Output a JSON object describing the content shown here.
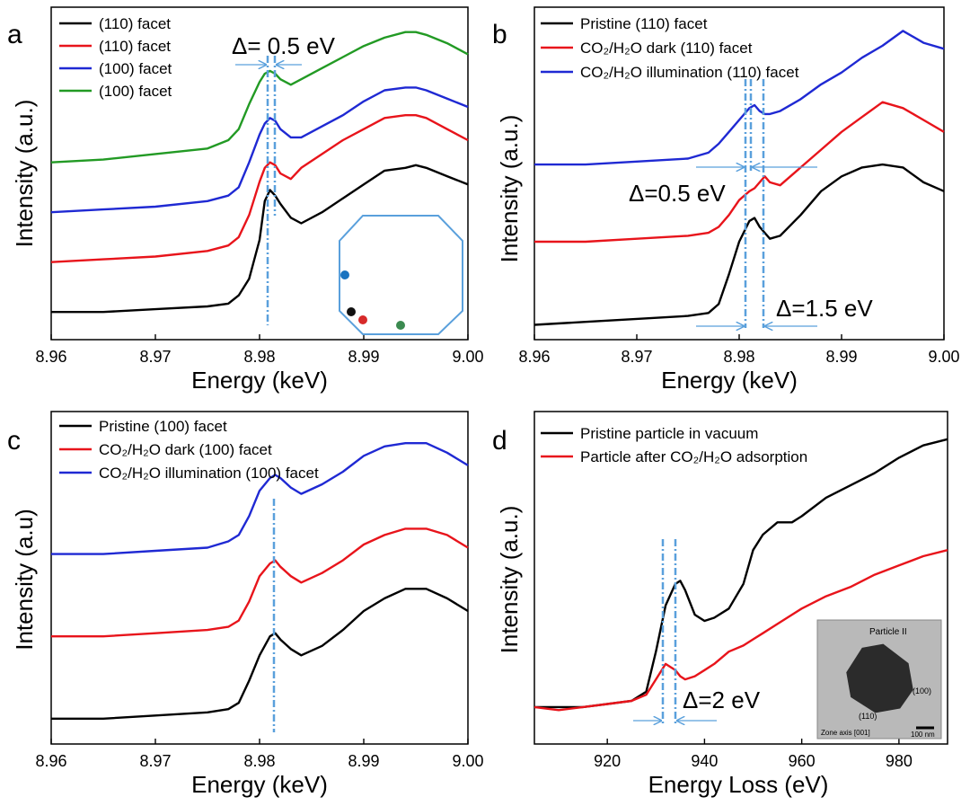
{
  "chart_data": [
    {
      "panel": "a",
      "type": "line",
      "xlabel": "Energy (keV)",
      "ylabel": "Intensity (a.u.)",
      "xlim": [
        8.96,
        9.0
      ],
      "x_ticks": [
        "8.96",
        "8.97",
        "8.98",
        "8.99",
        "9.00"
      ],
      "x": [
        8.96,
        8.965,
        8.97,
        8.975,
        8.977,
        8.978,
        8.979,
        8.98,
        8.9805,
        8.981,
        8.9815,
        8.982,
        8.983,
        8.984,
        8.986,
        8.988,
        8.99,
        8.992,
        8.994,
        8.995,
        8.996,
        8.998,
        9.0
      ],
      "series": [
        {
          "name": "(110) facet",
          "color": "#000000",
          "y": [
            0.1,
            0.1,
            0.11,
            0.12,
            0.13,
            0.16,
            0.22,
            0.36,
            0.5,
            0.54,
            0.52,
            0.49,
            0.44,
            0.42,
            0.46,
            0.51,
            0.56,
            0.61,
            0.62,
            0.63,
            0.62,
            0.59,
            0.56
          ]
        },
        {
          "name": "(110) facet",
          "color": "#e8141b",
          "y": [
            0.28,
            0.29,
            0.3,
            0.32,
            0.34,
            0.37,
            0.45,
            0.57,
            0.62,
            0.64,
            0.63,
            0.6,
            0.58,
            0.62,
            0.67,
            0.72,
            0.76,
            0.8,
            0.81,
            0.81,
            0.8,
            0.76,
            0.72
          ]
        },
        {
          "name": "(100) facet",
          "color": "#1f29d3",
          "y": [
            0.46,
            0.47,
            0.48,
            0.5,
            0.52,
            0.55,
            0.64,
            0.74,
            0.78,
            0.8,
            0.79,
            0.76,
            0.73,
            0.73,
            0.77,
            0.81,
            0.86,
            0.9,
            0.91,
            0.91,
            0.9,
            0.87,
            0.84
          ]
        },
        {
          "name": "(100) facet",
          "color": "#229a24",
          "y": [
            0.64,
            0.65,
            0.67,
            0.69,
            0.72,
            0.76,
            0.85,
            0.93,
            0.96,
            0.97,
            0.96,
            0.94,
            0.92,
            0.94,
            0.98,
            1.02,
            1.06,
            1.09,
            1.11,
            1.11,
            1.1,
            1.07,
            1.03
          ]
        }
      ],
      "annotations": [
        "Δ= 0.5 eV"
      ],
      "grid": false,
      "legend": "top-left"
    },
    {
      "panel": "b",
      "type": "line",
      "xlabel": "Energy (keV)",
      "ylabel": "Intensity (a.u.)",
      "xlim": [
        8.96,
        9.0
      ],
      "x_ticks": [
        "8.96",
        "8.97",
        "8.98",
        "8.99",
        "9.00"
      ],
      "x": [
        8.96,
        8.965,
        8.97,
        8.975,
        8.977,
        8.978,
        8.979,
        8.98,
        8.981,
        8.9815,
        8.982,
        8.9825,
        8.983,
        8.984,
        8.986,
        8.988,
        8.99,
        8.992,
        8.994,
        8.996,
        8.998,
        9.0
      ],
      "series": [
        {
          "name": "Pristine (110) facet",
          "color": "#000000",
          "y": [
            0.05,
            0.06,
            0.07,
            0.08,
            0.09,
            0.12,
            0.22,
            0.33,
            0.4,
            0.41,
            0.38,
            0.36,
            0.34,
            0.35,
            0.42,
            0.5,
            0.55,
            0.58,
            0.59,
            0.58,
            0.53,
            0.5
          ]
        },
        {
          "name": "CO₂/H₂O dark (110) facet",
          "color": "#e8141b",
          "y": [
            0.33,
            0.33,
            0.34,
            0.35,
            0.36,
            0.38,
            0.42,
            0.47,
            0.5,
            0.51,
            0.53,
            0.55,
            0.53,
            0.52,
            0.58,
            0.64,
            0.7,
            0.75,
            0.8,
            0.78,
            0.74,
            0.7
          ]
        },
        {
          "name": "CO₂/H₂O illumination (110) facet",
          "color": "#1f29d3",
          "y": [
            0.59,
            0.59,
            0.6,
            0.61,
            0.63,
            0.66,
            0.7,
            0.74,
            0.78,
            0.79,
            0.77,
            0.76,
            0.76,
            0.77,
            0.81,
            0.86,
            0.9,
            0.95,
            0.99,
            1.04,
            1.0,
            0.98
          ]
        }
      ],
      "annotations": [
        "Δ=0.5 eV",
        "Δ=1.5 eV"
      ],
      "grid": false,
      "legend": "top-left"
    },
    {
      "panel": "c",
      "type": "line",
      "xlabel": "Energy (keV)",
      "ylabel": "Intensity (a.u)",
      "xlim": [
        8.96,
        9.0
      ],
      "x_ticks": [
        "8.96",
        "8.97",
        "8.98",
        "8.99",
        "9.00"
      ],
      "x": [
        8.96,
        8.965,
        8.97,
        8.975,
        8.977,
        8.978,
        8.979,
        8.98,
        8.981,
        8.9815,
        8.982,
        8.983,
        8.984,
        8.986,
        8.988,
        8.99,
        8.992,
        8.994,
        8.995,
        8.996,
        8.998,
        9.0
      ],
      "series": [
        {
          "name": "Pristine (100) facet",
          "color": "#000000",
          "y": [
            0.08,
            0.08,
            0.09,
            0.1,
            0.11,
            0.13,
            0.2,
            0.28,
            0.34,
            0.35,
            0.33,
            0.3,
            0.28,
            0.31,
            0.36,
            0.42,
            0.46,
            0.49,
            0.49,
            0.49,
            0.46,
            0.42
          ]
        },
        {
          "name": "CO₂/H₂O dark (100) facet",
          "color": "#e8141b",
          "y": [
            0.34,
            0.34,
            0.35,
            0.36,
            0.37,
            0.39,
            0.45,
            0.53,
            0.57,
            0.58,
            0.56,
            0.53,
            0.51,
            0.54,
            0.58,
            0.63,
            0.66,
            0.68,
            0.68,
            0.68,
            0.66,
            0.62
          ]
        },
        {
          "name": "CO₂/H₂O illumination (100) facet",
          "color": "#1f29d3",
          "y": [
            0.6,
            0.6,
            0.61,
            0.62,
            0.64,
            0.66,
            0.72,
            0.8,
            0.84,
            0.85,
            0.84,
            0.81,
            0.79,
            0.82,
            0.86,
            0.91,
            0.94,
            0.95,
            0.95,
            0.95,
            0.92,
            0.88
          ]
        }
      ],
      "grid": false,
      "legend": "top-left"
    },
    {
      "panel": "d",
      "type": "line",
      "xlabel": "Energy Loss (eV)",
      "ylabel": "Intensity (a.u.)",
      "xlim": [
        905,
        990
      ],
      "x_ticks": [
        "920",
        "940",
        "960",
        "980"
      ],
      "x": [
        905,
        910,
        915,
        920,
        925,
        928,
        930,
        932,
        934,
        935,
        936,
        938,
        940,
        942,
        945,
        948,
        950,
        952,
        955,
        958,
        960,
        965,
        970,
        975,
        980,
        985,
        990
      ],
      "series": [
        {
          "name": "Pristine particle in vacuum",
          "color": "#000000",
          "y": [
            0.12,
            0.12,
            0.12,
            0.13,
            0.14,
            0.17,
            0.3,
            0.45,
            0.52,
            0.53,
            0.5,
            0.42,
            0.4,
            0.41,
            0.44,
            0.52,
            0.63,
            0.68,
            0.72,
            0.72,
            0.74,
            0.8,
            0.84,
            0.88,
            0.93,
            0.97,
            0.99
          ]
        },
        {
          "name": "Particle after CO₂/H₂O adsorption",
          "color": "#e8141b",
          "y": [
            0.12,
            0.11,
            0.12,
            0.13,
            0.14,
            0.16,
            0.21,
            0.26,
            0.24,
            0.22,
            0.21,
            0.22,
            0.24,
            0.26,
            0.3,
            0.32,
            0.34,
            0.36,
            0.39,
            0.42,
            0.44,
            0.48,
            0.51,
            0.55,
            0.58,
            0.61,
            0.63
          ]
        }
      ],
      "annotations": [
        "Δ=2 eV"
      ],
      "inset_labels": [
        "Particle II",
        "(100)",
        "(110)",
        "Zone axis [001]",
        "100 nm"
      ],
      "grid": false,
      "legend": "top-left"
    }
  ]
}
